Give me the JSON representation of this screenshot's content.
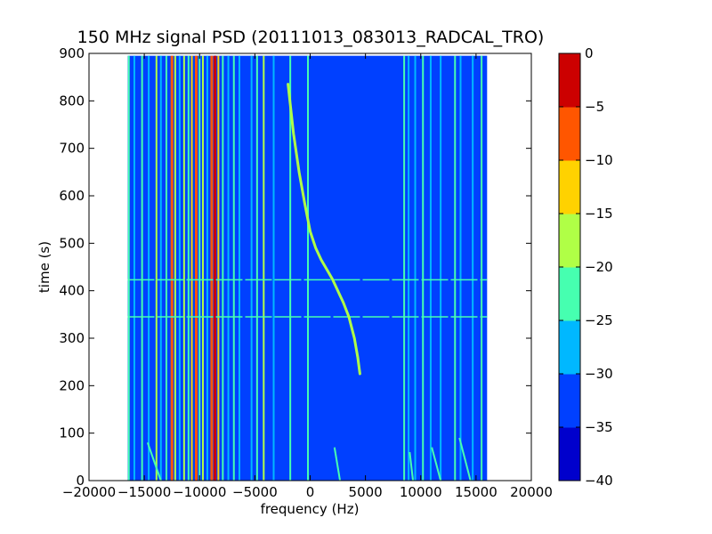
{
  "chart_data": {
    "type": "heatmap",
    "title": "150 MHz signal PSD (20111013_083013_RADCAL_TRO)",
    "xlabel": "frequency (Hz)",
    "ylabel": "time (s)",
    "xlim": [
      -20000,
      20000
    ],
    "ylim": [
      0,
      900
    ],
    "xticks": [
      -20000,
      -15000,
      -10000,
      -5000,
      0,
      5000,
      10000,
      15000,
      20000
    ],
    "xtick_labels": [
      "−20000",
      "−15000",
      "−10000",
      "−5000",
      "0",
      "5000",
      "10000",
      "15000",
      "20000"
    ],
    "yticks": [
      0,
      100,
      200,
      300,
      400,
      500,
      600,
      700,
      800,
      900
    ],
    "ytick_labels": [
      "0",
      "100",
      "200",
      "300",
      "400",
      "500",
      "600",
      "700",
      "800",
      "900"
    ],
    "data_extent": {
      "x": [
        -16500,
        16000
      ],
      "y": [
        0,
        895
      ]
    },
    "colorbar": {
      "levels": [
        -40,
        -35,
        -30,
        -25,
        -20,
        -15,
        -10,
        -5,
        0
      ],
      "tick_labels": [
        "−40",
        "−35",
        "−30",
        "−25",
        "−20",
        "−15",
        "−10",
        "−5",
        "0"
      ],
      "colors": [
        "#0000cc",
        "#0040ff",
        "#00b8ff",
        "#46ffb0",
        "#b0ff46",
        "#ffd200",
        "#ff5600",
        "#cc0000"
      ]
    },
    "background_level": -35,
    "vertical_lines": [
      {
        "f": -16400,
        "level": -25
      },
      {
        "f": -15900,
        "level": -30
      },
      {
        "f": -15200,
        "level": -25
      },
      {
        "f": -14600,
        "level": -30
      },
      {
        "f": -13900,
        "level": -20
      },
      {
        "f": -13500,
        "level": -30
      },
      {
        "f": -13000,
        "level": -25
      },
      {
        "f": -12500,
        "level": -10
      },
      {
        "f": -12200,
        "level": -20
      },
      {
        "f": -11800,
        "level": -30
      },
      {
        "f": -11400,
        "level": -20
      },
      {
        "f": -11000,
        "level": -25
      },
      {
        "f": -10700,
        "level": -15
      },
      {
        "f": -10300,
        "level": -10
      },
      {
        "f": -10000,
        "level": -25
      },
      {
        "f": -9700,
        "level": -20
      },
      {
        "f": -9300,
        "level": -30
      },
      {
        "f": -8900,
        "level": -10
      },
      {
        "f": -8600,
        "level": -5
      },
      {
        "f": -8300,
        "level": -15
      },
      {
        "f": -7900,
        "level": -25
      },
      {
        "f": -7400,
        "level": -30
      },
      {
        "f": -6900,
        "level": -25
      },
      {
        "f": -6400,
        "level": -30
      },
      {
        "f": -5300,
        "level": -30
      },
      {
        "f": -4800,
        "level": -25
      },
      {
        "f": -4200,
        "level": -20
      },
      {
        "f": -3300,
        "level": -30
      },
      {
        "f": -1800,
        "level": -25
      },
      {
        "f": -200,
        "level": -25
      },
      {
        "f": 8500,
        "level": -25
      },
      {
        "f": 8900,
        "level": -30
      },
      {
        "f": 9500,
        "level": -30
      },
      {
        "f": 10200,
        "level": -25
      },
      {
        "f": 10900,
        "level": -30
      },
      {
        "f": 11800,
        "level": -30
      },
      {
        "f": 13100,
        "level": -25
      },
      {
        "f": 13600,
        "level": -30
      },
      {
        "f": 14700,
        "level": -30
      },
      {
        "f": 15500,
        "level": -25
      }
    ],
    "horizontal_lines": [
      {
        "t": 345,
        "level": -25
      },
      {
        "t": 423,
        "level": -25
      }
    ],
    "doppler_curve": {
      "level": -20,
      "points": [
        [
          -2000,
          835
        ],
        [
          -1500,
          730
        ],
        [
          -1000,
          650
        ],
        [
          -500,
          585
        ],
        [
          0,
          525
        ],
        [
          500,
          490
        ],
        [
          1000,
          465
        ],
        [
          1500,
          445
        ],
        [
          2000,
          425
        ],
        [
          2500,
          400
        ],
        [
          3000,
          375
        ],
        [
          3500,
          345
        ],
        [
          4000,
          300
        ],
        [
          4300,
          260
        ],
        [
          4500,
          225
        ]
      ]
    },
    "diagonal_streaks": [
      {
        "points": [
          [
            -14700,
            80
          ],
          [
            -13500,
            0
          ]
        ],
        "level": -25
      },
      {
        "points": [
          [
            2200,
            70
          ],
          [
            2700,
            0
          ]
        ],
        "level": -25
      },
      {
        "points": [
          [
            11000,
            70
          ],
          [
            11800,
            0
          ]
        ],
        "level": -25
      },
      {
        "points": [
          [
            13500,
            90
          ],
          [
            14500,
            0
          ]
        ],
        "level": -25
      },
      {
        "points": [
          [
            9000,
            60
          ],
          [
            9300,
            0
          ]
        ],
        "level": -25
      }
    ]
  }
}
